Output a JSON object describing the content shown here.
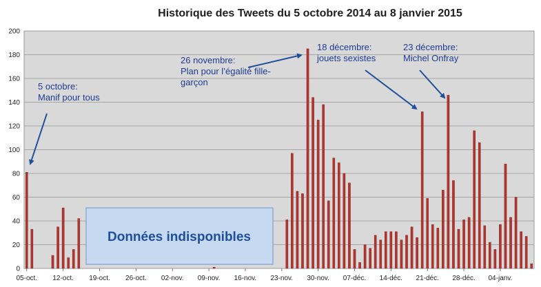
{
  "chart_data": {
    "type": "bar",
    "title": "Historique des Tweets du 5 octobre 2014 au 8 janvier 2015",
    "xlabel": "",
    "ylabel": "",
    "ylim": [
      0,
      200
    ],
    "yticks": [
      0,
      20,
      40,
      60,
      80,
      100,
      120,
      140,
      160,
      180,
      200
    ],
    "grid": true,
    "bar_color": "#b2352f",
    "start_date": "2014-10-05",
    "x_tick_labels": [
      "05-oct.",
      "12-oct.",
      "19-oct.",
      "26-oct.",
      "02-nov.",
      "09-nov.",
      "16-nov.",
      "23-nov.",
      "30-nov.",
      "07-déc.",
      "14-déc.",
      "21-déc.",
      "28-déc.",
      "04-janv."
    ],
    "values": [
      81,
      33,
      0,
      0,
      0,
      11,
      35,
      51,
      9,
      16,
      42,
      0,
      0,
      0,
      0,
      0,
      0,
      0,
      0,
      0,
      0,
      0,
      0,
      0,
      0,
      0,
      0,
      0,
      0,
      0,
      0,
      0,
      0,
      0,
      0,
      0,
      1,
      0,
      0,
      0,
      0,
      0,
      0,
      0,
      0,
      0,
      0,
      0,
      0,
      0,
      41,
      97,
      65,
      63,
      185,
      144,
      125,
      138,
      57,
      93,
      89,
      80,
      72,
      16,
      5,
      20,
      17,
      28,
      24,
      31,
      31,
      31,
      24,
      28,
      35,
      26,
      132,
      59,
      37,
      34,
      66,
      146,
      74,
      33,
      41,
      43,
      116,
      106,
      36,
      22,
      16,
      37,
      88,
      43,
      60,
      31,
      27,
      4
    ],
    "annotations": [
      {
        "lines": [
          "5 octobre:",
          "Manif pour tous"
        ],
        "index": 0
      },
      {
        "lines": [
          "26 novembre:",
          "Plan pour  l’égalité fille-",
          "garçon"
        ],
        "index": 54
      },
      {
        "lines": [
          "18 décembre:",
          "jouets sexistes"
        ],
        "index": 76
      },
      {
        "lines": [
          "23 décembre:",
          "Michel Onfray"
        ],
        "index": 81
      }
    ],
    "unavailable_label": "Données indisponibles"
  }
}
